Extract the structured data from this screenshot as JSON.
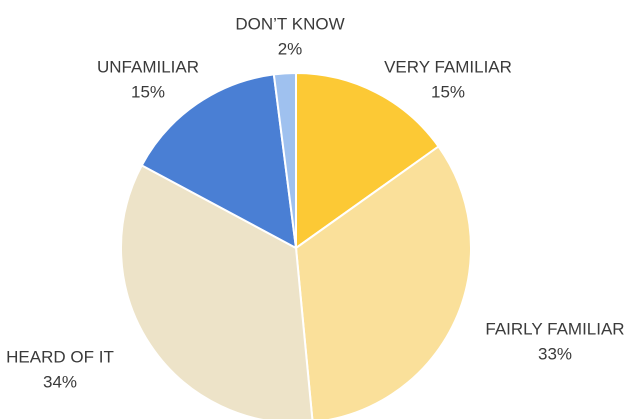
{
  "chart_data": {
    "type": "pie",
    "categories": [
      "VERY FAMILIAR",
      "FAIRLY FAMILIAR",
      "HEARD OF IT",
      "UNFAMILIAR",
      "DON’T KNOW"
    ],
    "values": [
      15,
      33,
      34,
      15,
      2
    ],
    "value_labels": [
      "15%",
      "33%",
      "34%",
      "15%",
      "2%"
    ],
    "colors": [
      "#fcc935",
      "#fae09a",
      "#ede3c8",
      "#4a7fd4",
      "#9fc1ef"
    ]
  }
}
